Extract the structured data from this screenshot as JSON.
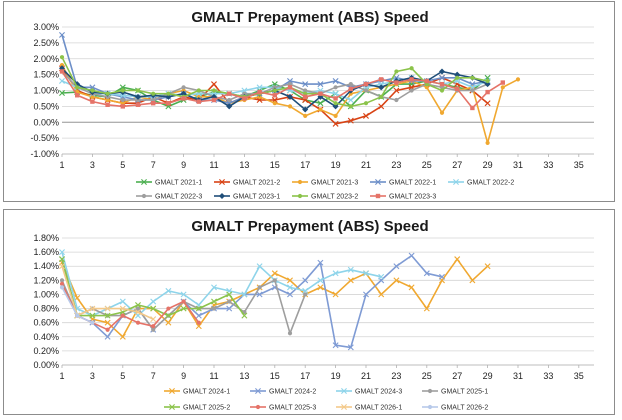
{
  "chart_data": [
    {
      "type": "line",
      "title": "GMALT Prepayment (ABS) Speed",
      "xlabel": "",
      "ylabel": "",
      "x_ticks": [
        1,
        3,
        5,
        7,
        9,
        11,
        13,
        15,
        17,
        19,
        21,
        23,
        25,
        27,
        29,
        31,
        33,
        35
      ],
      "x_range": [
        1,
        36
      ],
      "y_range": [
        -1.0,
        3.0
      ],
      "y_ticks": [
        -1.0,
        -0.5,
        0.0,
        0.5,
        1.0,
        1.5,
        2.0,
        2.5,
        3.0
      ],
      "y_tick_labels": [
        "-1.00%",
        "-0.50%",
        "0.00%",
        "0.50%",
        "1.00%",
        "1.50%",
        "2.00%",
        "2.50%",
        "3.00%"
      ],
      "grid": true,
      "legend": "bottom",
      "series": [
        {
          "name": "GMALT 2021-1",
          "color": "#4caf50",
          "marker": "x",
          "values": [
            0.92,
            0.95,
            0.85,
            0.8,
            1.1,
            1.0,
            0.7,
            0.5,
            0.7,
            0.8,
            0.95,
            0.9,
            0.8,
            1.0,
            1.2,
            1.0,
            0.7,
            0.6,
            0.9,
            0.5,
            1.0,
            0.8,
            1.2,
            1.2,
            1.3,
            1.2,
            1.1,
            1.0,
            1.4
          ]
        },
        {
          "name": "GMALT 2021-2",
          "color": "#d84315",
          "marker": "x",
          "values": [
            1.7,
            1.0,
            0.8,
            0.7,
            0.6,
            0.6,
            0.8,
            0.6,
            0.8,
            0.7,
            1.2,
            0.6,
            0.8,
            0.7,
            0.7,
            0.8,
            0.7,
            0.4,
            -0.05,
            0.05,
            0.2,
            0.5,
            1.0,
            1.1,
            1.2,
            1.4,
            1.2,
            1.0,
            0.6
          ]
        },
        {
          "name": "GMALT 2021-3",
          "color": "#f0a830",
          "marker": "dot",
          "values": [
            1.8,
            0.95,
            0.8,
            0.7,
            0.6,
            0.8,
            0.7,
            0.9,
            1.0,
            0.8,
            0.8,
            0.6,
            0.7,
            0.8,
            0.6,
            0.5,
            0.2,
            0.4,
            0.2,
            0.9,
            1.0,
            1.1,
            1.2,
            1.3,
            1.1,
            0.3,
            1.0,
            1.1,
            -0.65,
            1.1,
            1.35
          ]
        },
        {
          "name": "GMALT 2022-1",
          "color": "#6d8fc8",
          "marker": "x",
          "values": [
            2.75,
            1.1,
            1.1,
            0.9,
            0.8,
            0.7,
            0.7,
            0.8,
            0.9,
            0.7,
            0.7,
            0.6,
            0.8,
            0.9,
            1.0,
            1.3,
            1.2,
            1.2,
            1.3,
            1.1,
            1.2,
            1.3,
            1.4,
            1.3,
            1.3,
            1.4,
            1.4,
            1.2,
            1.3
          ]
        },
        {
          "name": "GMALT 2022-2",
          "color": "#8ed4ea",
          "marker": "x",
          "values": [
            1.3,
            1.1,
            0.9,
            0.9,
            0.85,
            0.8,
            0.8,
            0.9,
            0.85,
            0.9,
            0.9,
            0.9,
            1.0,
            1.1,
            1.1,
            1.0,
            0.9,
            1.0,
            0.9,
            0.7,
            1.1,
            1.2,
            1.3,
            1.4,
            1.3,
            1.2,
            1.3,
            1.1,
            1.3
          ]
        },
        {
          "name": "GMALT 2022-3",
          "color": "#9e9e9e",
          "marker": "dot",
          "values": [
            1.6,
            1.1,
            0.9,
            0.8,
            0.7,
            0.7,
            0.7,
            0.9,
            1.1,
            1.0,
            0.8,
            0.7,
            0.9,
            0.9,
            1.1,
            1.2,
            1.0,
            0.9,
            1.1,
            1.2,
            1.0,
            0.8,
            0.7,
            1.0,
            1.2,
            1.1,
            1.0,
            1.0,
            1.2
          ]
        },
        {
          "name": "GMALT 2023-1",
          "color": "#1f4e79",
          "marker": "diamond",
          "values": [
            1.7,
            1.2,
            0.95,
            0.9,
            0.95,
            0.8,
            0.85,
            0.8,
            0.9,
            0.7,
            0.8,
            0.5,
            0.8,
            0.9,
            1.0,
            0.8,
            0.4,
            0.8,
            0.5,
            1.0,
            1.2,
            1.1,
            1.3,
            1.4,
            1.3,
            1.6,
            1.5,
            1.4,
            1.2
          ]
        },
        {
          "name": "GMALT 2023-2",
          "color": "#8bc34a",
          "marker": "dot",
          "values": [
            2.05,
            1.1,
            1.0,
            0.9,
            1.0,
            1.0,
            0.9,
            0.9,
            0.8,
            1.0,
            1.0,
            0.9,
            0.8,
            0.9,
            1.0,
            1.1,
            0.9,
            0.9,
            0.6,
            0.5,
            0.6,
            0.8,
            1.6,
            1.7,
            1.2,
            1.0,
            1.4,
            1.4,
            1.3
          ]
        },
        {
          "name": "GMALT 2023-3",
          "color": "#e57368",
          "marker": "square",
          "values": [
            1.6,
            0.85,
            0.65,
            0.55,
            0.5,
            0.55,
            0.6,
            0.6,
            0.75,
            0.65,
            0.7,
            0.9,
            0.75,
            0.95,
            0.85,
            1.1,
            0.8,
            0.9,
            0.75,
            1.05,
            1.2,
            1.35,
            1.25,
            1.35,
            1.3,
            1.2,
            1.05,
            0.45,
            0.95,
            1.25
          ]
        }
      ]
    },
    {
      "type": "line",
      "title": "GMALT Prepayment (ABS) Speed",
      "xlabel": "",
      "ylabel": "",
      "x_ticks": [
        1,
        3,
        5,
        7,
        9,
        11,
        13,
        15,
        17,
        19,
        21,
        23,
        25,
        27,
        29,
        31,
        33,
        35
      ],
      "x_range": [
        1,
        36
      ],
      "y_range": [
        0.0,
        1.8
      ],
      "y_ticks": [
        0.0,
        0.2,
        0.4,
        0.6,
        0.8,
        1.0,
        1.2,
        1.4,
        1.6,
        1.8
      ],
      "y_tick_labels": [
        "0.00%",
        "0.20%",
        "0.40%",
        "0.60%",
        "0.80%",
        "1.00%",
        "1.20%",
        "1.40%",
        "1.60%",
        "1.80%"
      ],
      "grid": true,
      "legend": "bottom",
      "series": [
        {
          "name": "GMALT 2024-1",
          "color": "#f0a830",
          "marker": "x",
          "values": [
            1.45,
            0.95,
            0.65,
            0.6,
            0.4,
            0.8,
            0.8,
            0.6,
            0.9,
            0.55,
            0.85,
            0.9,
            1.0,
            1.1,
            1.3,
            1.2,
            1.0,
            1.1,
            1.0,
            1.2,
            1.3,
            1.0,
            1.2,
            1.1,
            0.8,
            1.2,
            1.5,
            1.2,
            1.4
          ]
        },
        {
          "name": "GMALT 2024-2",
          "color": "#7f9bd4",
          "marker": "x",
          "values": [
            1.5,
            0.7,
            0.6,
            0.4,
            0.7,
            0.8,
            0.5,
            0.7,
            0.9,
            0.7,
            0.8,
            0.8,
            1.0,
            1.0,
            1.1,
            1.0,
            1.2,
            1.45,
            0.28,
            0.25,
            1.0,
            1.2,
            1.4,
            1.55,
            1.3,
            1.25
          ]
        },
        {
          "name": "GMALT 2024-3",
          "color": "#8ed4ea",
          "marker": "x",
          "values": [
            1.6,
            0.8,
            0.7,
            0.8,
            0.9,
            0.7,
            0.9,
            1.05,
            1.0,
            0.85,
            1.1,
            1.05,
            1.0,
            1.4,
            1.2,
            1.1,
            1.05,
            1.2,
            1.3,
            1.35,
            1.3,
            1.25
          ]
        },
        {
          "name": "GMALT 2025-1",
          "color": "#9e9e9e",
          "marker": "dot",
          "values": [
            1.2,
            0.7,
            0.8,
            0.7,
            0.7,
            0.8,
            0.5,
            0.7,
            0.9,
            0.8,
            0.8,
            0.9,
            0.75,
            1.1,
            1.2,
            0.45,
            1.0
          ]
        },
        {
          "name": "GMALT 2025-2",
          "color": "#8bc34a",
          "marker": "x",
          "values": [
            1.5,
            0.7,
            0.7,
            0.7,
            0.75,
            0.85,
            0.8,
            0.7,
            0.8,
            0.8,
            0.9,
            1.0,
            0.7
          ]
        },
        {
          "name": "GMALT 2025-3",
          "color": "#e57368",
          "marker": "dot",
          "values": [
            1.15,
            0.7,
            0.6,
            0.5,
            0.7,
            0.6,
            0.55,
            0.8,
            0.9,
            0.6
          ]
        },
        {
          "name": "GMALT 2026-1",
          "color": "#f3c98a",
          "marker": "x",
          "values": [
            1.4,
            0.7,
            0.8,
            0.8,
            0.8,
            0.75,
            0.65
          ]
        },
        {
          "name": "GMALT 2026-2",
          "color": "#b7c9ea",
          "marker": "dot",
          "values": [
            1.1,
            0.7,
            0.6
          ]
        }
      ]
    }
  ]
}
